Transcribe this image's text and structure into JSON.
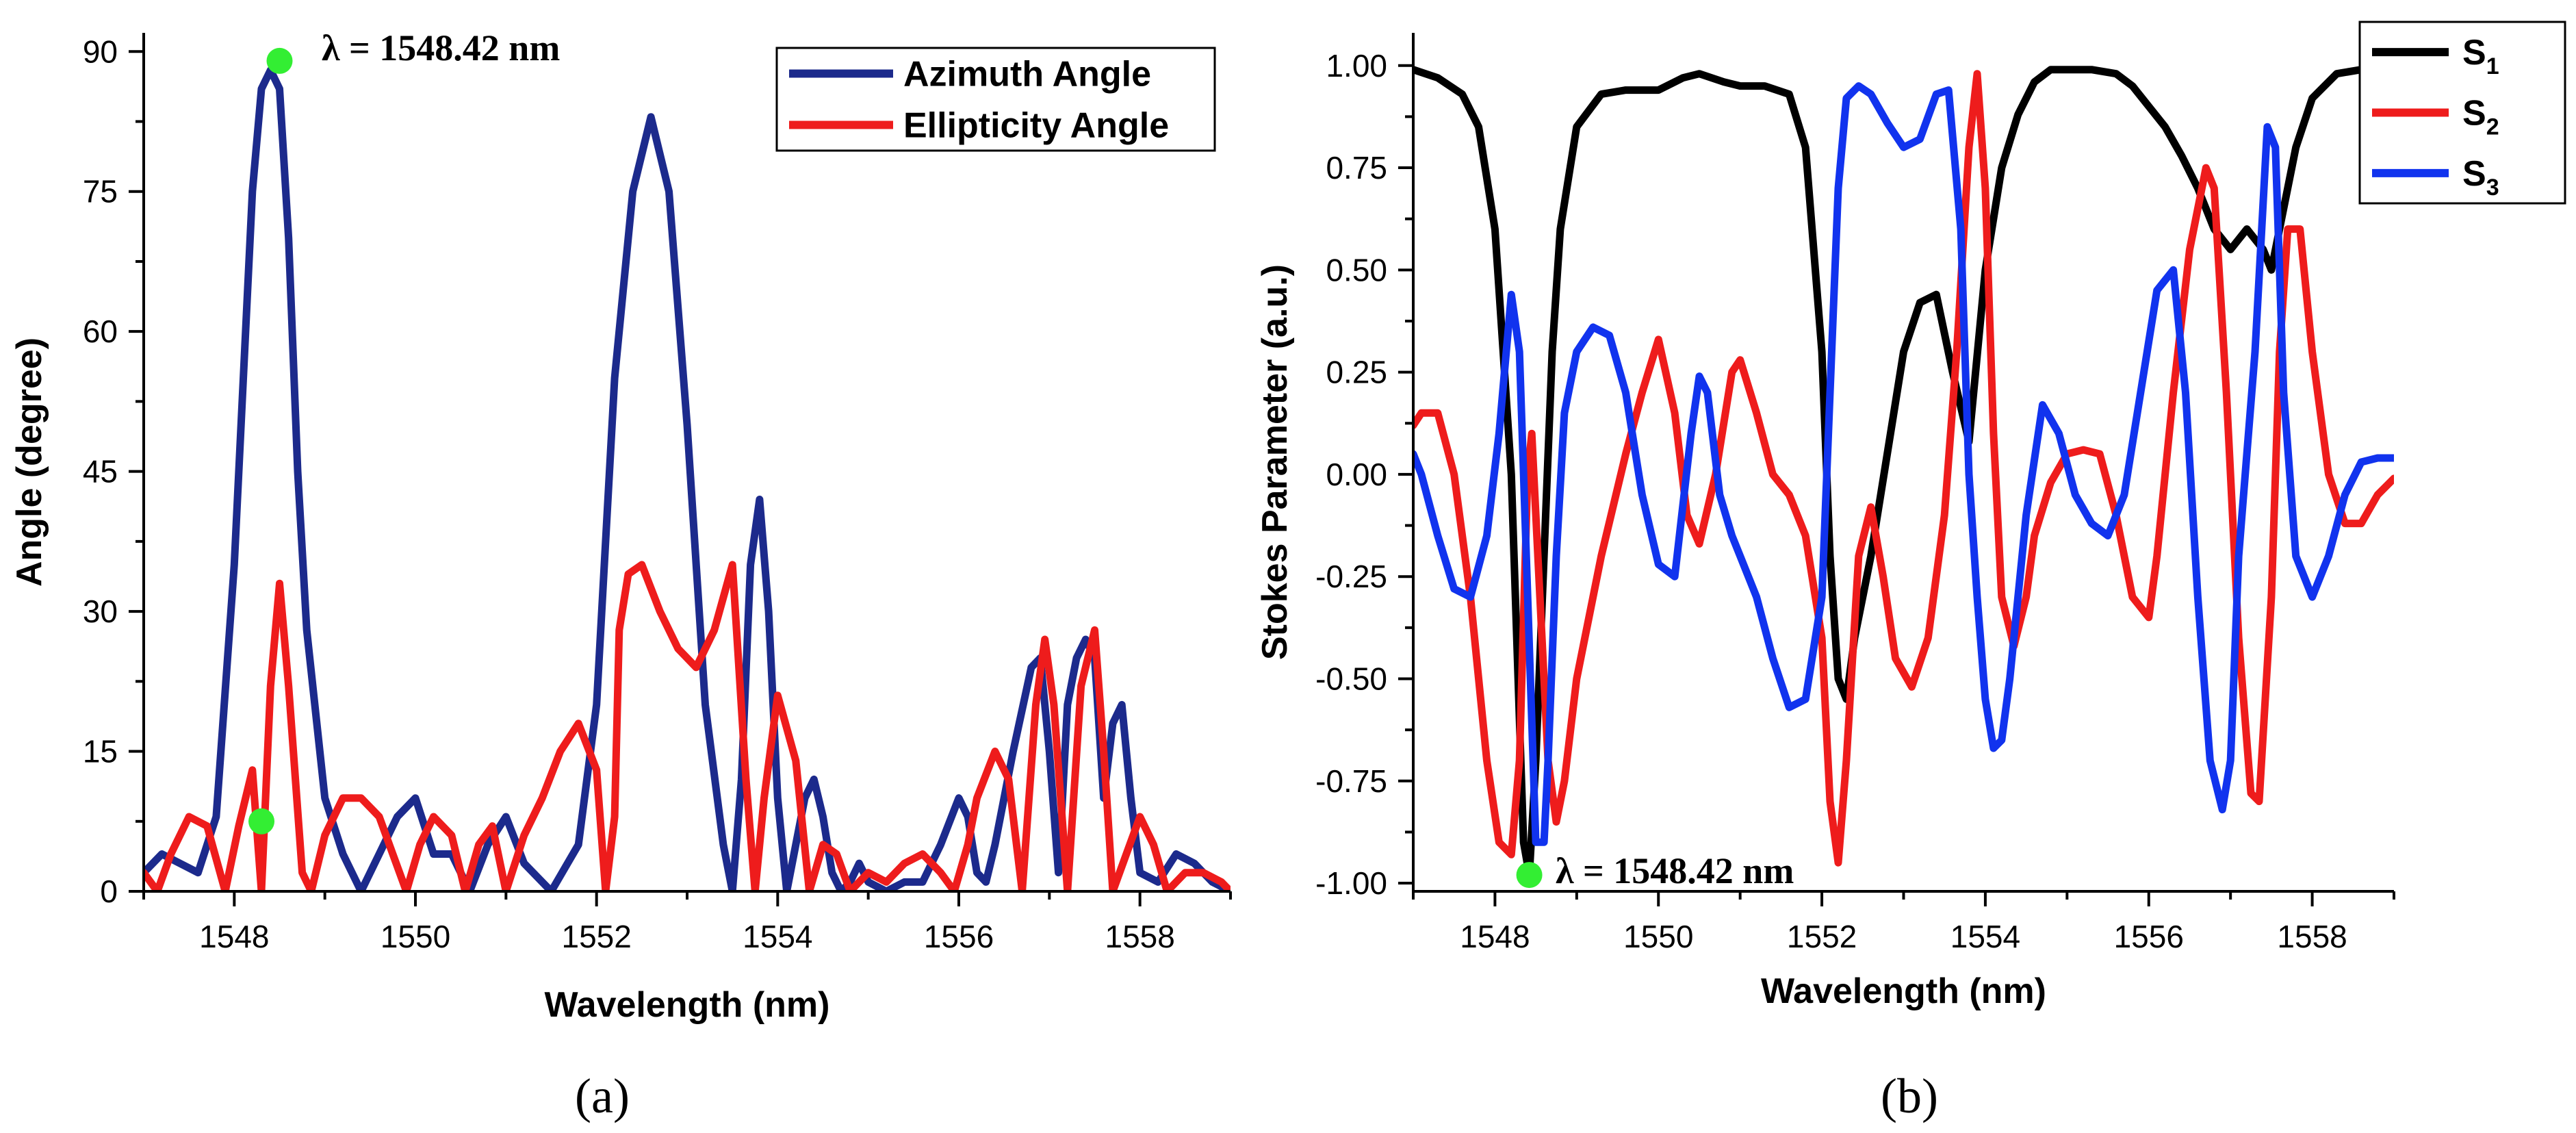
{
  "chart_data": [
    {
      "type": "line",
      "panel_label": "(a)",
      "xlabel": "Wavelength (nm)",
      "ylabel": "Angle (degree)",
      "xlim": [
        1547,
        1559
      ],
      "ylim": [
        0,
        92
      ],
      "xticks": [
        1548,
        1550,
        1552,
        1554,
        1556,
        1558
      ],
      "xtick_labels": [
        "1548",
        "1550",
        "1552",
        "1554",
        "1556",
        "1558"
      ],
      "yticks": [
        0,
        15,
        30,
        45,
        60,
        75,
        90
      ],
      "ytick_labels": [
        "0",
        "15",
        "30",
        "45",
        "60",
        "75",
        "90"
      ],
      "legend_position": "top-right",
      "series": [
        {
          "name": "Azimuth Angle",
          "color": "#1c2a8c",
          "x": [
            1547.0,
            1547.2,
            1547.4,
            1547.6,
            1547.8,
            1548.0,
            1548.2,
            1548.3,
            1548.4,
            1548.5,
            1548.6,
            1548.7,
            1548.8,
            1549.0,
            1549.2,
            1549.4,
            1549.6,
            1549.8,
            1550.0,
            1550.2,
            1550.4,
            1550.6,
            1550.8,
            1551.0,
            1551.2,
            1551.5,
            1551.8,
            1552.0,
            1552.2,
            1552.4,
            1552.6,
            1552.8,
            1553.0,
            1553.2,
            1553.4,
            1553.5,
            1553.6,
            1553.7,
            1553.8,
            1553.9,
            1554.0,
            1554.1,
            1554.2,
            1554.3,
            1554.4,
            1554.5,
            1554.6,
            1554.7,
            1554.8,
            1554.9,
            1555.0,
            1555.2,
            1555.4,
            1555.6,
            1555.8,
            1556.0,
            1556.1,
            1556.2,
            1556.3,
            1556.4,
            1556.6,
            1556.8,
            1556.9,
            1557.0,
            1557.1,
            1557.2,
            1557.3,
            1557.4,
            1557.5,
            1557.6,
            1557.7,
            1557.8,
            1557.9,
            1558.0,
            1558.2,
            1558.4,
            1558.6,
            1558.8,
            1559.0
          ],
          "values": [
            2,
            4,
            3,
            2,
            8,
            35,
            75,
            86,
            88,
            86,
            70,
            45,
            28,
            10,
            4,
            0,
            4,
            8,
            10,
            4,
            4,
            0,
            5,
            8,
            3,
            0,
            5,
            20,
            55,
            75,
            83,
            75,
            50,
            20,
            5,
            0,
            12,
            35,
            42,
            30,
            10,
            0,
            5,
            10,
            12,
            8,
            2,
            0,
            1,
            3,
            1,
            0,
            1,
            1,
            5,
            10,
            8,
            2,
            1,
            5,
            15,
            24,
            25,
            15,
            2,
            20,
            25,
            27,
            25,
            10,
            18,
            20,
            10,
            2,
            1,
            4,
            3,
            1,
            0
          ]
        },
        {
          "name": "Ellipticity Angle",
          "color": "#ee1c1c",
          "x": [
            1547.0,
            1547.15,
            1547.3,
            1547.5,
            1547.7,
            1547.9,
            1548.05,
            1548.2,
            1548.3,
            1548.4,
            1548.5,
            1548.6,
            1548.75,
            1548.85,
            1549.0,
            1549.2,
            1549.4,
            1549.6,
            1549.75,
            1549.9,
            1550.05,
            1550.2,
            1550.4,
            1550.55,
            1550.7,
            1550.85,
            1551.0,
            1551.2,
            1551.4,
            1551.6,
            1551.8,
            1552.0,
            1552.1,
            1552.2,
            1552.25,
            1552.35,
            1552.5,
            1552.7,
            1552.9,
            1553.1,
            1553.3,
            1553.5,
            1553.65,
            1553.75,
            1553.85,
            1554.0,
            1554.2,
            1554.35,
            1554.5,
            1554.65,
            1554.8,
            1555.0,
            1555.2,
            1555.4,
            1555.6,
            1555.8,
            1555.95,
            1556.1,
            1556.2,
            1556.4,
            1556.55,
            1556.7,
            1556.85,
            1556.95,
            1557.05,
            1557.2,
            1557.35,
            1557.5,
            1557.6,
            1557.7,
            1557.85,
            1558.0,
            1558.15,
            1558.3,
            1558.5,
            1558.7,
            1558.9,
            1559.0
          ],
          "values": [
            2,
            0,
            4,
            8,
            7,
            0,
            7,
            13,
            0,
            22,
            33,
            22,
            2,
            0,
            6,
            10,
            10,
            8,
            4,
            0,
            5,
            8,
            6,
            0,
            5,
            7,
            0,
            6,
            10,
            15,
            18,
            13,
            0,
            8,
            28,
            34,
            35,
            30,
            26,
            24,
            28,
            35,
            12,
            0,
            10,
            21,
            14,
            0,
            5,
            4,
            0,
            2,
            1,
            3,
            4,
            2,
            0,
            5,
            10,
            15,
            12,
            0,
            20,
            27,
            20,
            0,
            22,
            28,
            15,
            0,
            4,
            8,
            5,
            0,
            2,
            2,
            1,
            0
          ]
        }
      ],
      "annotations": [
        {
          "text": "λ = 1548.42 nm",
          "marker_x": 1548.5,
          "marker_y": 89,
          "marker_color": "#33ee33"
        },
        {
          "text": "",
          "marker_x": 1548.3,
          "marker_y": 7.5,
          "marker_color": "#33ee33"
        }
      ]
    },
    {
      "type": "line",
      "panel_label": "(b)",
      "xlabel": "Wavelength (nm)",
      "ylabel": "Stokes Parameter (a.u.)",
      "xlim": [
        1547,
        1559
      ],
      "ylim": [
        -1.02,
        1.08
      ],
      "xticks": [
        1548,
        1550,
        1552,
        1554,
        1556,
        1558
      ],
      "xtick_labels": [
        "1548",
        "1550",
        "1552",
        "1554",
        "1556",
        "1558"
      ],
      "yticks": [
        -1.0,
        -0.75,
        -0.5,
        -0.25,
        0.0,
        0.25,
        0.5,
        0.75,
        1.0
      ],
      "ytick_labels": [
        "-1.00",
        "-0.75",
        "-0.50",
        "-0.25",
        "0.00",
        "0.25",
        "0.50",
        "0.75",
        "1.00"
      ],
      "legend_position": "top-right",
      "series": [
        {
          "name": "S",
          "sub": "1",
          "color": "#000000",
          "x": [
            1547.0,
            1547.3,
            1547.6,
            1547.8,
            1548.0,
            1548.1,
            1548.2,
            1548.3,
            1548.35,
            1548.42,
            1548.5,
            1548.6,
            1548.7,
            1548.8,
            1549.0,
            1549.3,
            1549.6,
            1550.0,
            1550.3,
            1550.5,
            1550.8,
            1551.0,
            1551.3,
            1551.6,
            1551.8,
            1552.0,
            1552.1,
            1552.2,
            1552.3,
            1552.4,
            1552.6,
            1552.8,
            1553.0,
            1553.2,
            1553.4,
            1553.6,
            1553.8,
            1554.0,
            1554.2,
            1554.4,
            1554.6,
            1554.8,
            1555.0,
            1555.3,
            1555.6,
            1555.8,
            1556.0,
            1556.2,
            1556.4,
            1556.6,
            1556.8,
            1557.0,
            1557.2,
            1557.4,
            1557.5,
            1557.6,
            1557.8,
            1558.0,
            1558.3,
            1558.6,
            1559.0
          ],
          "values": [
            0.99,
            0.97,
            0.93,
            0.85,
            0.6,
            0.3,
            0.0,
            -0.6,
            -0.9,
            -0.98,
            -0.7,
            -0.2,
            0.3,
            0.6,
            0.85,
            0.93,
            0.94,
            0.94,
            0.97,
            0.98,
            0.96,
            0.95,
            0.95,
            0.93,
            0.8,
            0.3,
            -0.2,
            -0.5,
            -0.55,
            -0.4,
            -0.2,
            0.05,
            0.3,
            0.42,
            0.44,
            0.25,
            0.08,
            0.5,
            0.75,
            0.88,
            0.96,
            0.99,
            0.99,
            0.99,
            0.98,
            0.95,
            0.9,
            0.85,
            0.78,
            0.7,
            0.6,
            0.55,
            0.6,
            0.55,
            0.5,
            0.6,
            0.8,
            0.92,
            0.98,
            0.99,
            0.99
          ]
        },
        {
          "name": "S",
          "sub": "2",
          "color": "#ee1c1c",
          "x": [
            1547.0,
            1547.1,
            1547.3,
            1547.5,
            1547.7,
            1547.9,
            1548.05,
            1548.2,
            1548.3,
            1548.4,
            1548.45,
            1548.55,
            1548.65,
            1548.75,
            1548.85,
            1549.0,
            1549.3,
            1549.6,
            1549.8,
            1550.0,
            1550.2,
            1550.35,
            1550.5,
            1550.7,
            1550.9,
            1551.0,
            1551.2,
            1551.4,
            1551.6,
            1551.8,
            1552.0,
            1552.1,
            1552.2,
            1552.3,
            1552.45,
            1552.6,
            1552.75,
            1552.9,
            1553.1,
            1553.3,
            1553.5,
            1553.65,
            1553.8,
            1553.9,
            1554.0,
            1554.1,
            1554.2,
            1554.35,
            1554.5,
            1554.6,
            1554.8,
            1555.0,
            1555.2,
            1555.4,
            1555.6,
            1555.8,
            1556.0,
            1556.1,
            1556.3,
            1556.5,
            1556.7,
            1556.8,
            1556.95,
            1557.1,
            1557.25,
            1557.35,
            1557.5,
            1557.6,
            1557.7,
            1557.85,
            1558.0,
            1558.2,
            1558.4,
            1558.6,
            1558.8,
            1559.0
          ],
          "values": [
            0.12,
            0.15,
            0.15,
            0.0,
            -0.3,
            -0.7,
            -0.9,
            -0.93,
            -0.7,
            0.0,
            0.1,
            -0.3,
            -0.7,
            -0.85,
            -0.75,
            -0.5,
            -0.2,
            0.05,
            0.2,
            0.33,
            0.15,
            -0.1,
            -0.17,
            0.0,
            0.25,
            0.28,
            0.15,
            0.0,
            -0.05,
            -0.15,
            -0.4,
            -0.8,
            -0.95,
            -0.7,
            -0.2,
            -0.08,
            -0.25,
            -0.45,
            -0.52,
            -0.4,
            -0.1,
            0.3,
            0.8,
            0.98,
            0.7,
            0.1,
            -0.3,
            -0.42,
            -0.3,
            -0.15,
            -0.02,
            0.05,
            0.06,
            0.05,
            -0.1,
            -0.3,
            -0.35,
            -0.2,
            0.2,
            0.55,
            0.75,
            0.7,
            0.2,
            -0.4,
            -0.78,
            -0.8,
            -0.3,
            0.3,
            0.6,
            0.6,
            0.3,
            0.0,
            -0.12,
            -0.12,
            -0.05,
            -0.01
          ]
        },
        {
          "name": "S",
          "sub": "3",
          "color": "#1133ee",
          "x": [
            1547.0,
            1547.1,
            1547.3,
            1547.5,
            1547.7,
            1547.9,
            1548.05,
            1548.2,
            1548.3,
            1548.4,
            1548.5,
            1548.6,
            1548.65,
            1548.75,
            1548.85,
            1549.0,
            1549.2,
            1549.4,
            1549.6,
            1549.8,
            1550.0,
            1550.2,
            1550.4,
            1550.5,
            1550.6,
            1550.75,
            1550.9,
            1551.0,
            1551.2,
            1551.4,
            1551.6,
            1551.8,
            1552.0,
            1552.1,
            1552.2,
            1552.3,
            1552.45,
            1552.6,
            1552.8,
            1553.0,
            1553.2,
            1553.4,
            1553.55,
            1553.7,
            1553.8,
            1553.9,
            1554.0,
            1554.1,
            1554.2,
            1554.3,
            1554.5,
            1554.7,
            1554.9,
            1555.1,
            1555.3,
            1555.5,
            1555.7,
            1555.9,
            1556.1,
            1556.3,
            1556.45,
            1556.6,
            1556.75,
            1556.9,
            1557.0,
            1557.1,
            1557.3,
            1557.45,
            1557.55,
            1557.65,
            1557.8,
            1558.0,
            1558.2,
            1558.4,
            1558.6,
            1558.8,
            1559.0
          ],
          "values": [
            0.05,
            0.0,
            -0.15,
            -0.28,
            -0.3,
            -0.15,
            0.1,
            0.44,
            0.3,
            -0.3,
            -0.9,
            -0.9,
            -0.7,
            -0.2,
            0.15,
            0.3,
            0.36,
            0.34,
            0.2,
            -0.05,
            -0.22,
            -0.25,
            0.1,
            0.24,
            0.2,
            -0.05,
            -0.15,
            -0.2,
            -0.3,
            -0.45,
            -0.57,
            -0.55,
            -0.3,
            0.2,
            0.7,
            0.92,
            0.95,
            0.93,
            0.86,
            0.8,
            0.82,
            0.93,
            0.94,
            0.6,
            0.0,
            -0.3,
            -0.55,
            -0.67,
            -0.65,
            -0.5,
            -0.1,
            0.17,
            0.1,
            -0.05,
            -0.12,
            -0.15,
            -0.05,
            0.2,
            0.45,
            0.5,
            0.2,
            -0.3,
            -0.7,
            -0.82,
            -0.7,
            -0.2,
            0.3,
            0.85,
            0.8,
            0.2,
            -0.2,
            -0.3,
            -0.2,
            -0.05,
            0.03,
            0.04,
            0.04
          ]
        }
      ],
      "annotations": [
        {
          "text": "λ = 1548.42 nm",
          "marker_x": 1548.42,
          "marker_y": -0.98,
          "marker_color": "#33ee33"
        }
      ]
    }
  ]
}
